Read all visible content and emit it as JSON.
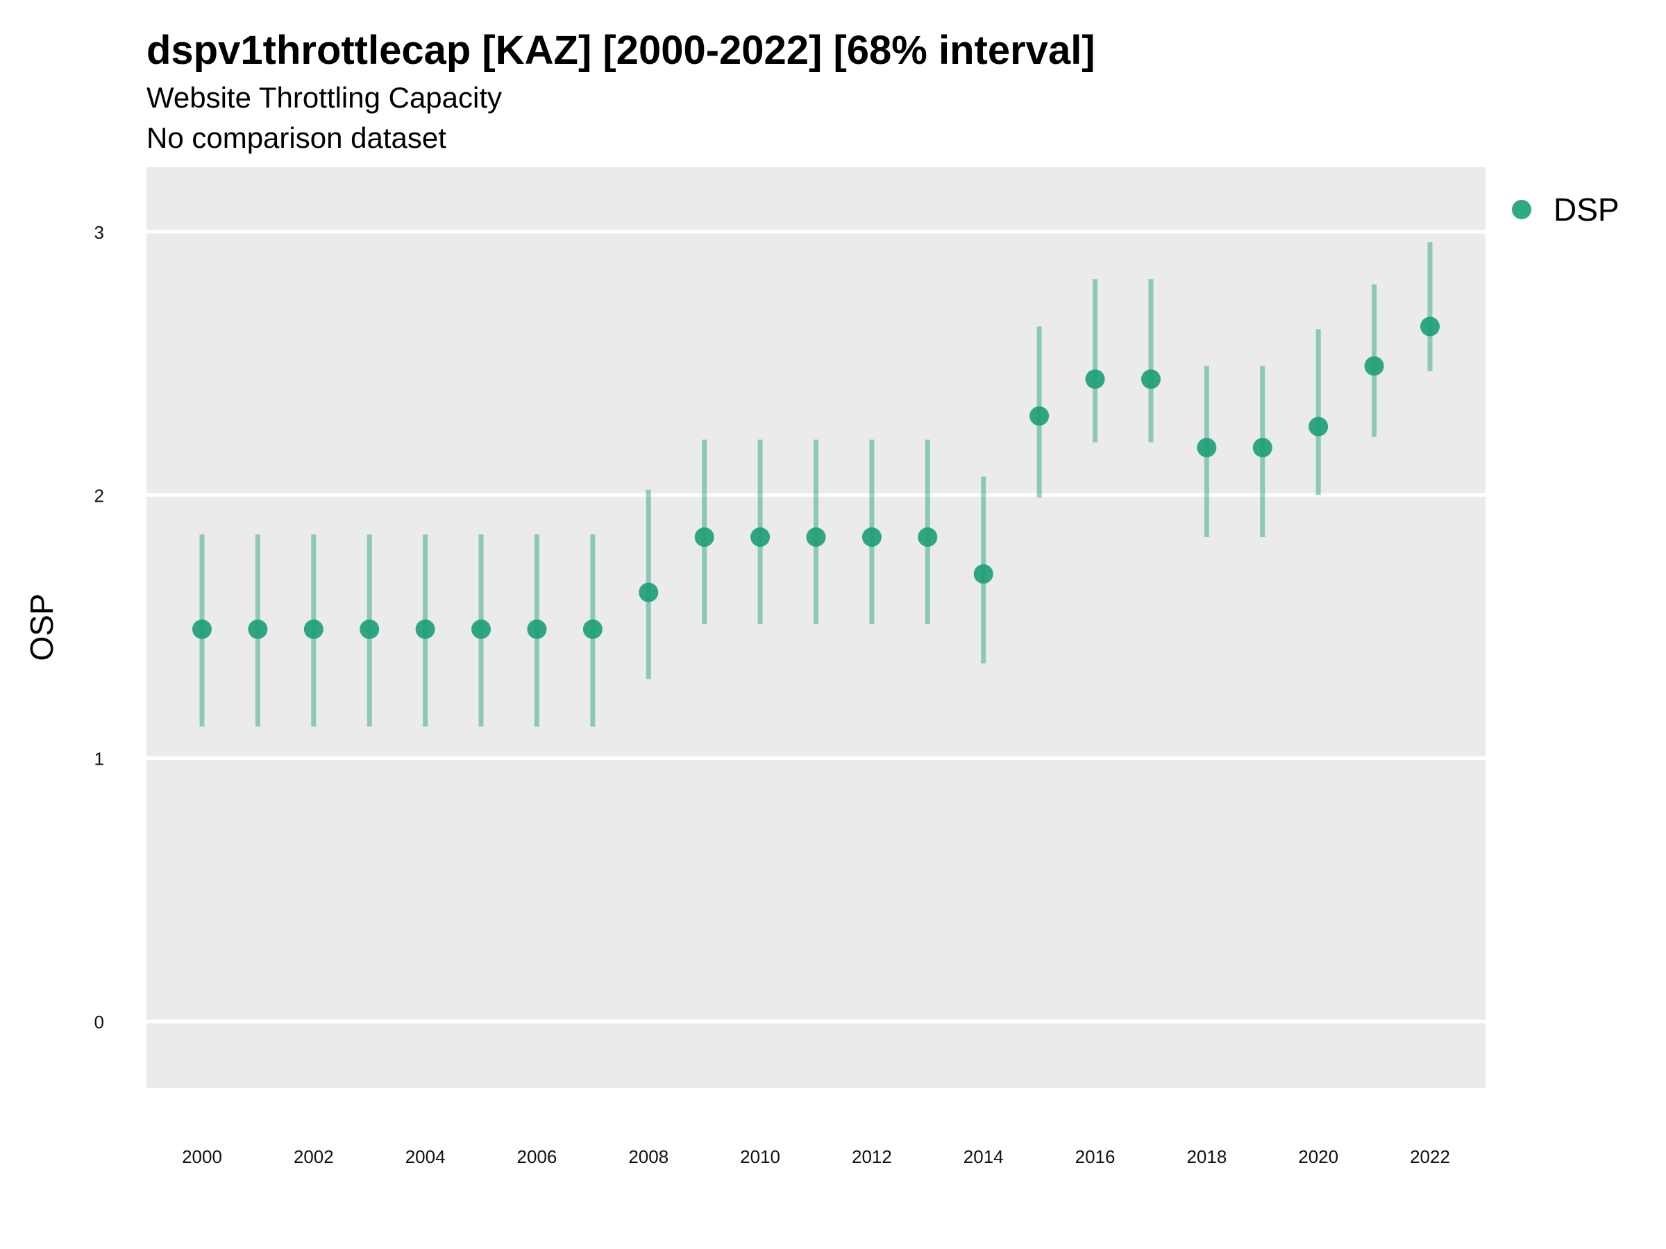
{
  "chart_data": {
    "type": "scatter",
    "title": "dspv1throttlecap [KAZ] [2000-2022] [68% interval]",
    "subtitle": "Website Throttling Capacity",
    "caption": "No comparison dataset",
    "xlabel": "",
    "ylabel": "OSP",
    "ylim": [
      -0.25,
      3.25
    ],
    "xlim": [
      1999,
      2023
    ],
    "yticks": [
      0,
      1,
      2,
      3
    ],
    "xticks": [
      2000,
      2002,
      2004,
      2006,
      2008,
      2010,
      2012,
      2014,
      2016,
      2018,
      2020,
      2022
    ],
    "grid": true,
    "legend": {
      "position": "right",
      "entries": [
        "DSP"
      ]
    },
    "colors": {
      "point": "#1B9E77",
      "panel": "#EBEBEB",
      "grid": "#FFFFFF"
    },
    "series": [
      {
        "name": "DSP",
        "x": [
          2000,
          2001,
          2002,
          2003,
          2004,
          2005,
          2006,
          2007,
          2008,
          2009,
          2010,
          2011,
          2012,
          2013,
          2014,
          2015,
          2016,
          2017,
          2018,
          2019,
          2020,
          2021,
          2022
        ],
        "y": [
          1.49,
          1.49,
          1.49,
          1.49,
          1.49,
          1.49,
          1.49,
          1.49,
          1.63,
          1.84,
          1.84,
          1.84,
          1.84,
          1.84,
          1.7,
          2.3,
          2.44,
          2.44,
          2.18,
          2.18,
          2.26,
          2.49,
          2.64
        ],
        "lower": [
          1.12,
          1.12,
          1.12,
          1.12,
          1.12,
          1.12,
          1.12,
          1.12,
          1.3,
          1.51,
          1.51,
          1.51,
          1.51,
          1.51,
          1.36,
          1.99,
          2.2,
          2.2,
          1.84,
          1.84,
          2.0,
          2.22,
          2.47
        ],
        "upper": [
          1.85,
          1.85,
          1.85,
          1.85,
          1.85,
          1.85,
          1.85,
          1.85,
          2.02,
          2.21,
          2.21,
          2.21,
          2.21,
          2.21,
          2.07,
          2.64,
          2.82,
          2.82,
          2.49,
          2.49,
          2.63,
          2.8,
          2.96
        ]
      }
    ]
  }
}
